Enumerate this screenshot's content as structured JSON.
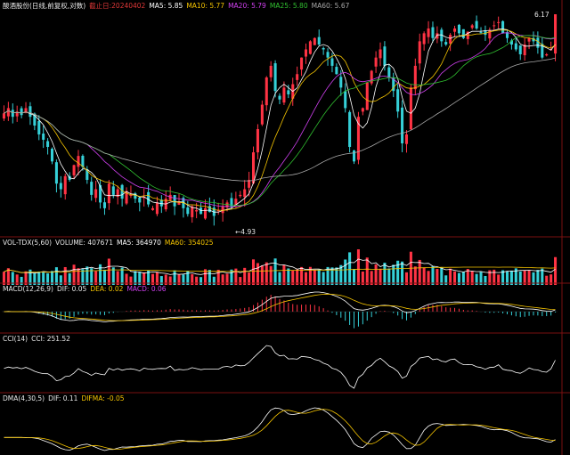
{
  "header": {
    "stock": "酸酒股份",
    "period_label": "(日线,前复权,对数)",
    "cutoff": "截止日:20240402",
    "ma5": "MA5: 5.85",
    "ma10": "MA10: 5.77",
    "ma20": "MA20: 5.79",
    "ma25": "MA25: 5.80",
    "ma60": "MA60: 5.67"
  },
  "volume_header": {
    "name": "VOL-TDX(5,60)",
    "volume": "VOLUME: 407671",
    "ma5": "MA5: 364970",
    "ma60": "MA60: 354025"
  },
  "macd_header": {
    "name": "MACD(12,26,9)",
    "dif": "DIF: 0.05",
    "dea": "DEA: 0.02",
    "macd": "MACD: 0.06"
  },
  "cci_header": {
    "name": "CCI(14)",
    "cci": "CCI: 251.52"
  },
  "dma_header": {
    "name": "DMA(4,30,5)",
    "dif": "DIF: 0.11",
    "difma": "DIFMA: -0.05"
  },
  "annotations": {
    "high_label": "6.17",
    "low_label": "4.93"
  },
  "colors": {
    "background": "#000000",
    "up": "#ff3344",
    "down": "#35d0d8",
    "ma5": "#ffffff",
    "ma10": "#f5c400",
    "ma20": "#d040f0",
    "ma25": "#30c030",
    "ma60": "#a8a8a8",
    "cutoff": "#e03838"
  },
  "chart_data": {
    "type": "candlestick",
    "price_range": [
      4.93,
      6.17
    ],
    "log_scale": true,
    "close_trend": [
      5.57,
      5.6,
      5.55,
      5.58,
      5.56,
      5.6,
      5.55,
      5.5,
      5.45,
      5.42,
      5.38,
      5.3,
      5.18,
      5.15,
      5.22,
      5.2,
      5.28,
      5.33,
      5.27,
      5.2,
      5.12,
      5.15,
      5.08,
      5.05,
      5.18,
      5.12,
      5.15,
      5.1,
      5.14,
      5.12,
      5.1,
      5.08,
      5.11,
      5.07,
      5.05,
      5.08,
      5.06,
      5.1,
      5.12,
      5.06,
      5.08,
      5.05,
      5.02,
      5.06,
      5.04,
      5.02,
      5.05,
      5.03,
      5.01,
      5.04,
      5.06,
      5.08,
      5.06,
      5.1,
      5.12,
      5.15,
      5.2,
      5.35,
      5.48,
      5.62,
      5.78,
      5.85,
      5.7,
      5.65,
      5.72,
      5.68,
      5.74,
      5.8,
      5.9,
      5.95,
      6.0,
      6.02,
      5.98,
      5.95,
      5.9,
      5.85,
      5.8,
      5.72,
      5.6,
      5.38,
      5.3,
      5.55,
      5.6,
      5.75,
      5.82,
      5.9,
      5.95,
      5.85,
      5.78,
      5.7,
      5.58,
      5.4,
      5.45,
      5.72,
      5.85,
      6.0,
      6.05,
      6.08,
      6.02,
      6.05,
      6.0,
      5.98,
      6.04,
      6.08,
      6.05,
      6.02,
      6.06,
      6.1,
      6.08,
      6.05,
      6.04,
      6.07,
      6.1,
      6.12,
      6.05,
      6.02,
      5.98,
      5.95,
      5.92,
      5.98,
      6.02,
      6.0,
      5.96,
      5.9,
      5.92,
      5.95,
      6.17
    ],
    "series": [
      {
        "name": "MA5",
        "value": 5.85
      },
      {
        "name": "MA10",
        "value": 5.77
      },
      {
        "name": "MA20",
        "value": 5.79
      },
      {
        "name": "MA25",
        "value": 5.8
      },
      {
        "name": "MA60",
        "value": 5.67
      }
    ],
    "indicators": {
      "volume": {
        "last": 407671,
        "ma5": 364970,
        "ma60": 354025
      },
      "macd": {
        "dif": 0.05,
        "dea": 0.02,
        "macd": 0.06
      },
      "cci": {
        "value": 251.52
      },
      "dma": {
        "dif": 0.11,
        "difma": -0.05
      }
    }
  }
}
